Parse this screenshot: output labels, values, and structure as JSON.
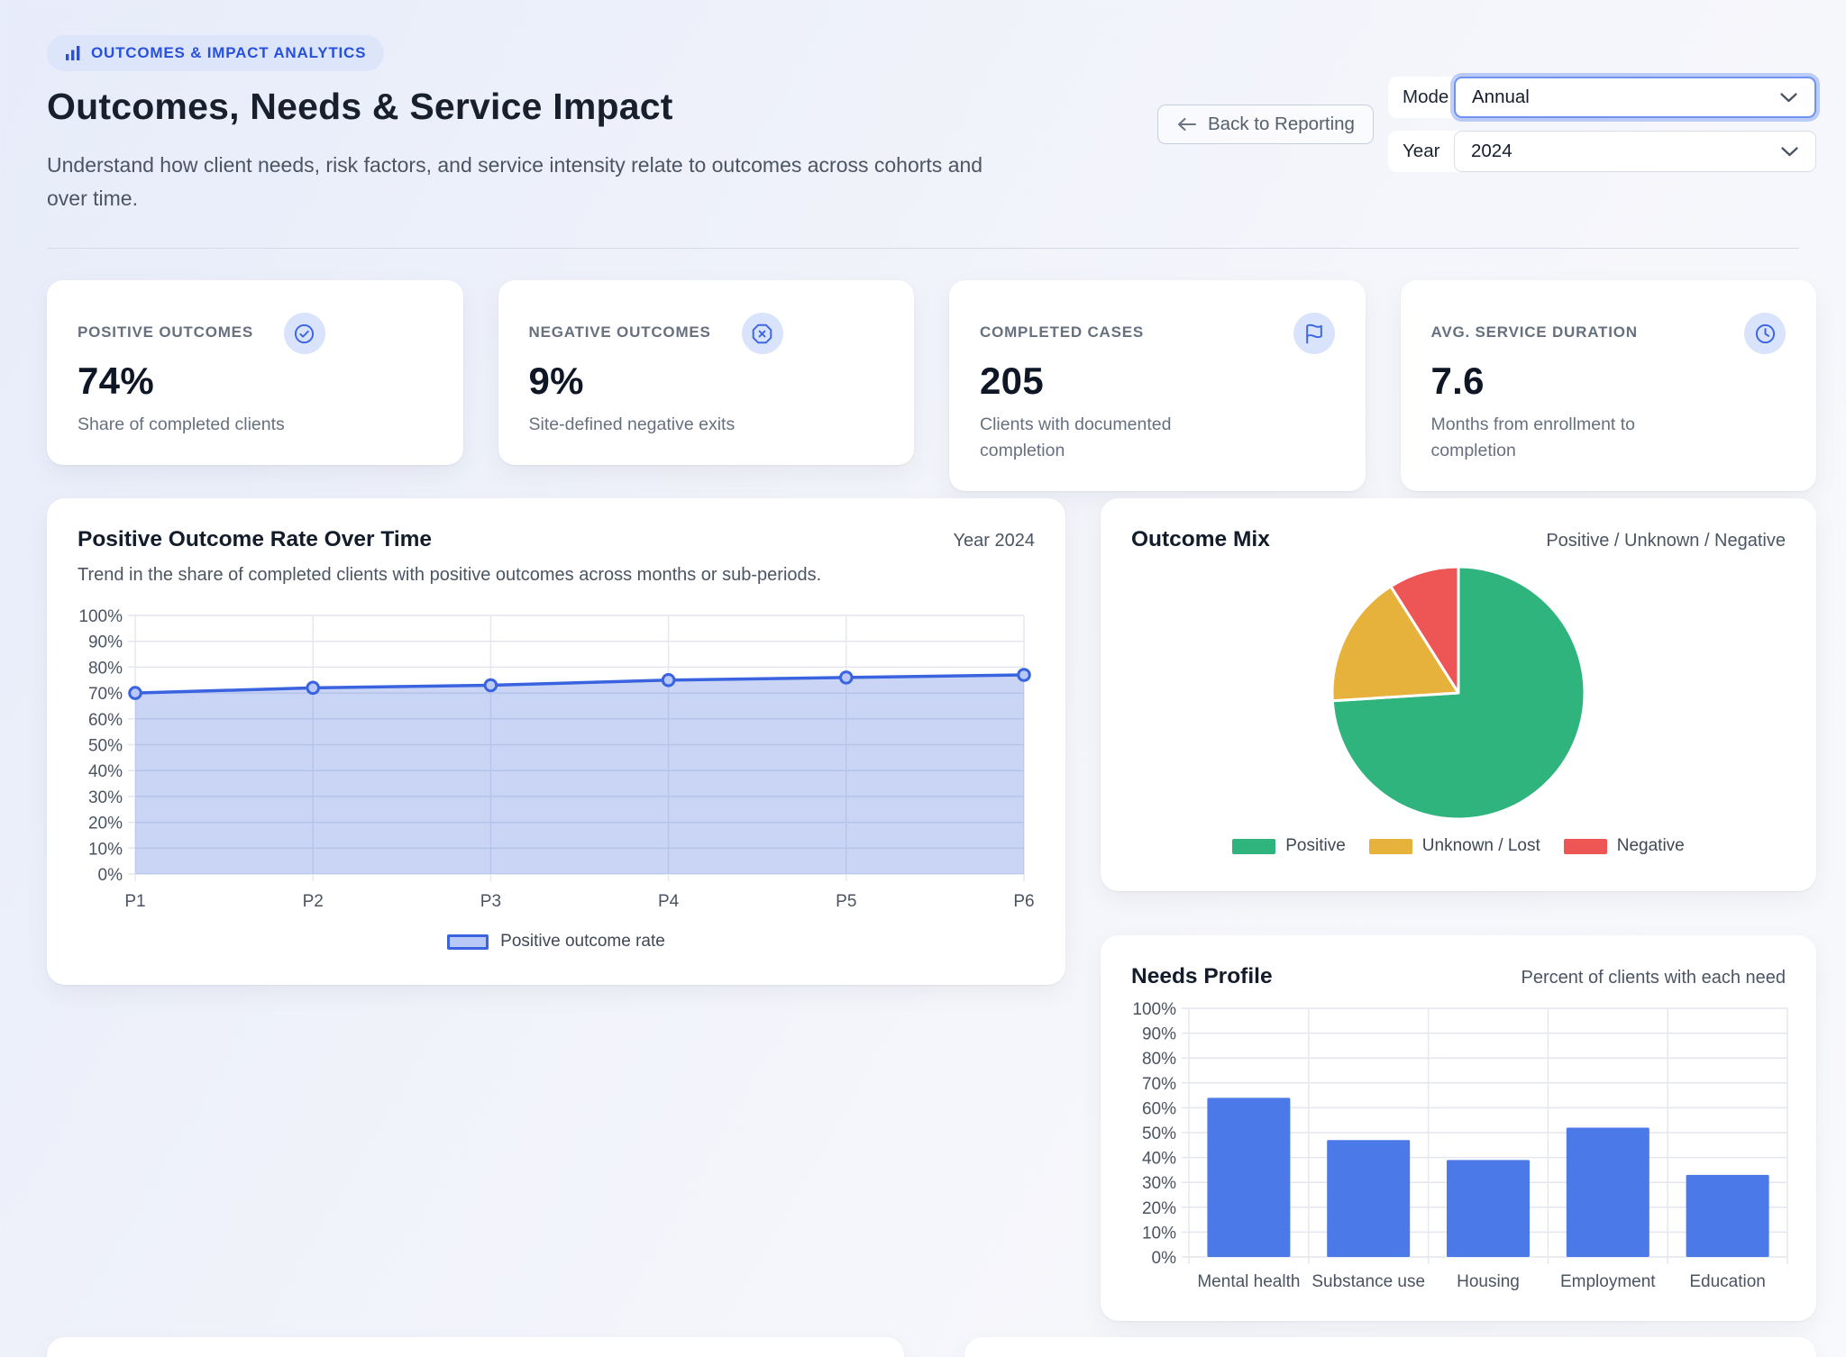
{
  "page": {
    "badge": "OUTCOMES & IMPACT ANALYTICS",
    "title": "Outcomes, Needs & Service Impact",
    "subtitle": "Understand how client needs, risk factors, and service intensity relate to outcomes across cohorts and over time."
  },
  "controls": {
    "back_label": "Back to Reporting",
    "mode_label": "Mode",
    "mode_value": "Annual",
    "year_label": "Year",
    "year_value": "2024"
  },
  "kpis": [
    {
      "label": "POSITIVE OUTCOMES",
      "value": "74%",
      "desc": "Share of completed clients",
      "icon": "check-circle"
    },
    {
      "label": "NEGATIVE OUTCOMES",
      "value": "9%",
      "desc": "Site-defined negative exits",
      "icon": "x-octagon"
    },
    {
      "label": "COMPLETED CASES",
      "value": "205",
      "desc": "Clients with documented completion",
      "icon": "flag"
    },
    {
      "label": "AVG. SERVICE DURATION",
      "value": "7.6",
      "desc": "Months from enrollment to completion",
      "icon": "clock"
    }
  ],
  "chart_data": [
    {
      "type": "area",
      "title": "Positive Outcome Rate Over Time",
      "corner_label": "Year 2024",
      "subtitle": "Trend in the share of completed clients with positive outcomes across months or sub-periods.",
      "categories": [
        "P1",
        "P2",
        "P3",
        "P4",
        "P5",
        "P6"
      ],
      "series": [
        {
          "name": "Positive outcome rate",
          "values": [
            70,
            72,
            73,
            75,
            76,
            77
          ]
        }
      ],
      "ylim": [
        0,
        100
      ],
      "ytick_step": 10,
      "grid": true,
      "legend_position": "bottom",
      "line_color": "#3a63df",
      "fill_color": "rgba(58,99,223,0.27)",
      "point_fill": "#b9c9f7"
    },
    {
      "type": "pie",
      "title": "Outcome Mix",
      "corner_label": "Positive / Unknown / Negative",
      "labels": [
        "Positive",
        "Unknown / Lost",
        "Negative"
      ],
      "values": [
        74,
        17,
        9
      ],
      "colors": [
        "#2eb47c",
        "#e6b23c",
        "#ee5656"
      ],
      "legend_position": "bottom"
    },
    {
      "type": "bar",
      "title": "Needs Profile",
      "corner_label": "Percent of clients with each need",
      "categories": [
        "Mental health",
        "Substance use",
        "Housing",
        "Employment",
        "Education"
      ],
      "values": [
        64,
        47,
        39,
        52,
        33
      ],
      "ylim": [
        0,
        100
      ],
      "ytick_step": 10,
      "grid": true,
      "bar_color": "#4b79e8"
    }
  ]
}
